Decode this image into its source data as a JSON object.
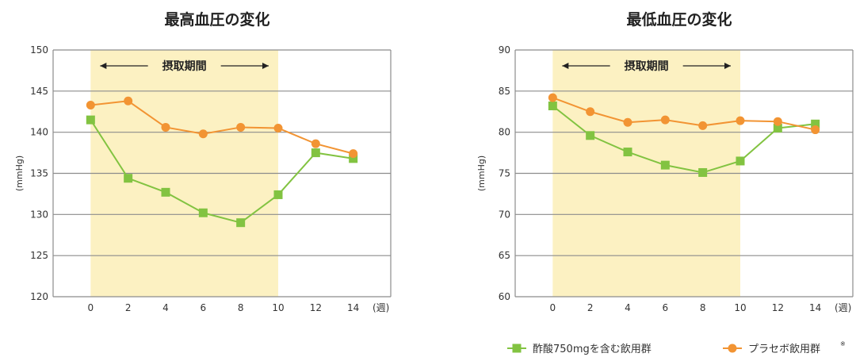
{
  "colors": {
    "acetic_acid_group": "#82c341",
    "placebo_group": "#f29433",
    "intake_period_fill": "#fcf1c2",
    "gridline": "#8c8c8c"
  },
  "chart_data": [
    {
      "type": "line",
      "title": "最高血圧の変化",
      "ylabel": "(mmHg)",
      "xlabel": "(週)",
      "x": [
        0,
        2,
        4,
        6,
        8,
        10,
        12,
        14
      ],
      "xlim": [
        -2,
        16
      ],
      "ylim": [
        120,
        150
      ],
      "yticks": [
        120,
        125,
        130,
        135,
        140,
        145,
        150
      ],
      "grid": true,
      "highlight": {
        "label": "摂取期間",
        "from": 0,
        "to": 10
      },
      "series": [
        {
          "name": "酢酸750mgを含む飲用群",
          "marker": "square",
          "color_key": "acetic_acid_group",
          "values": [
            141.5,
            134.4,
            132.7,
            130.2,
            129.0,
            132.4,
            137.5,
            136.8
          ]
        },
        {
          "name": "プラセボ飲用群",
          "marker": "circle",
          "color_key": "placebo_group",
          "values": [
            143.3,
            143.8,
            140.6,
            139.8,
            140.6,
            140.5,
            138.6,
            137.4
          ]
        }
      ]
    },
    {
      "type": "line",
      "title": "最低血圧の変化",
      "ylabel": "(mmHg)",
      "xlabel": "(週)",
      "x": [
        0,
        2,
        4,
        6,
        8,
        10,
        12,
        14
      ],
      "xlim": [
        -2,
        16
      ],
      "ylim": [
        60,
        90
      ],
      "yticks": [
        60,
        65,
        70,
        75,
        80,
        85,
        90
      ],
      "grid": true,
      "highlight": {
        "label": "摂取期間",
        "from": 0,
        "to": 10
      },
      "series": [
        {
          "name": "酢酸750mgを含む飲用群",
          "marker": "square",
          "color_key": "acetic_acid_group",
          "values": [
            83.2,
            79.6,
            77.6,
            76.0,
            75.1,
            76.5,
            80.5,
            81.0
          ]
        },
        {
          "name": "プラセボ飲用群",
          "marker": "circle",
          "color_key": "placebo_group",
          "values": [
            84.2,
            82.5,
            81.2,
            81.5,
            80.8,
            81.4,
            81.3,
            80.3
          ]
        }
      ]
    }
  ],
  "legend": {
    "position": "bottom-right",
    "items": [
      {
        "label": "酢酸750mgを含む飲用群",
        "marker": "square",
        "color_key": "acetic_acid_group"
      },
      {
        "label": "プラセボ飲用群",
        "marker": "circle",
        "color_key": "placebo_group",
        "superscript": "※"
      }
    ]
  }
}
